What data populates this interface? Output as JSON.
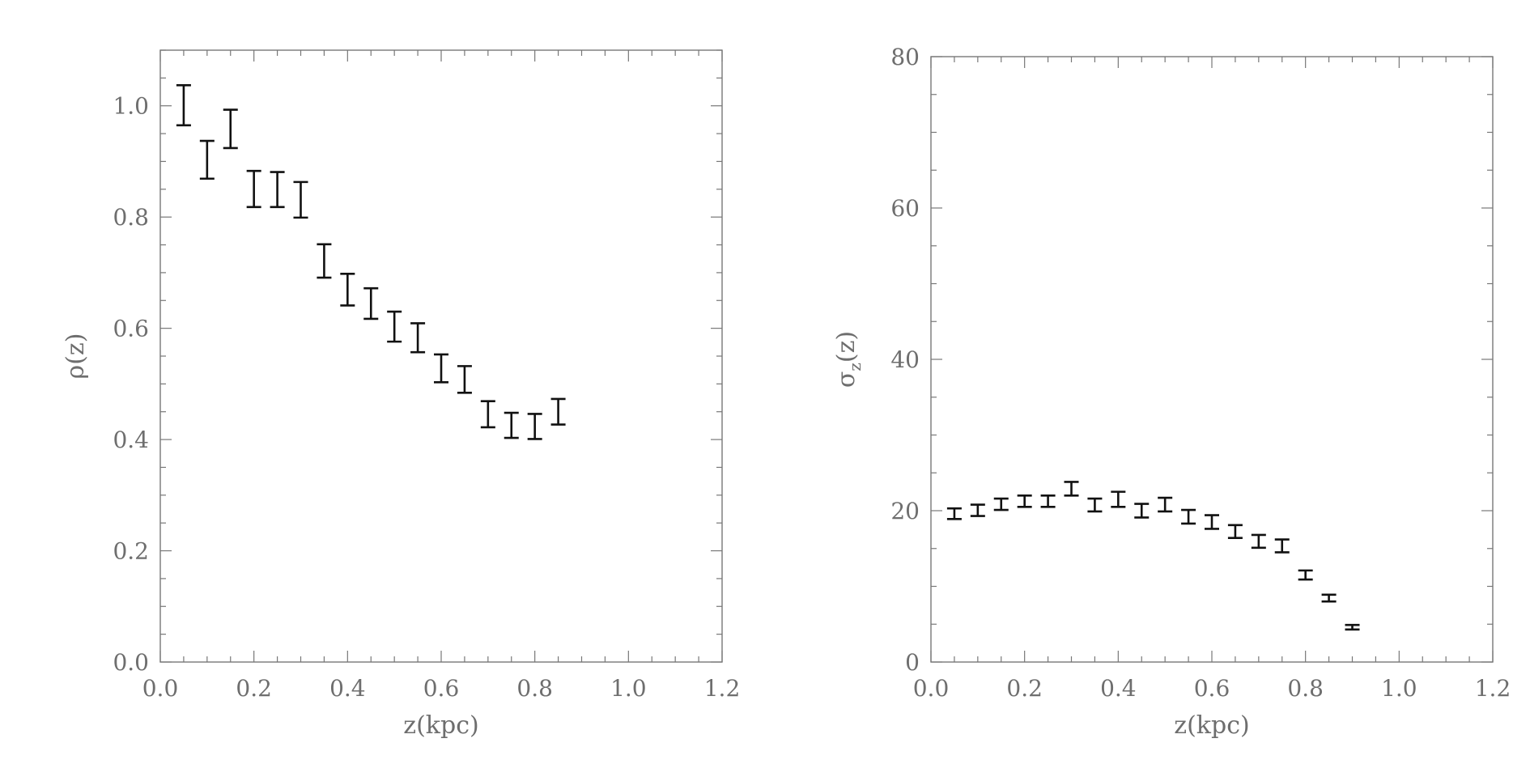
{
  "chart_data": [
    {
      "type": "scatter",
      "style": "error-bars",
      "xlabel": "z(kpc)",
      "ylabel": "ρ(z)",
      "xlim": [
        0.0,
        1.2
      ],
      "ylim": [
        0.0,
        1.1
      ],
      "x_ticks": [
        "0.0",
        "0.2",
        "0.4",
        "0.6",
        "0.8",
        "1.0",
        "1.2"
      ],
      "y_ticks": [
        "0.0",
        "0.2",
        "0.4",
        "0.6",
        "0.8",
        "1.0"
      ],
      "x_tick_values": [
        0.0,
        0.2,
        0.4,
        0.6,
        0.8,
        1.0,
        1.2
      ],
      "y_tick_values": [
        0.0,
        0.2,
        0.4,
        0.6,
        0.8,
        1.0
      ],
      "x_minor_step": 0.05,
      "y_minor_step": 0.05,
      "grid": false,
      "points": [
        {
          "x": 0.05,
          "low": 0.965,
          "high": 1.037
        },
        {
          "x": 0.1,
          "low": 0.869,
          "high": 0.937
        },
        {
          "x": 0.15,
          "low": 0.924,
          "high": 0.993
        },
        {
          "x": 0.2,
          "low": 0.818,
          "high": 0.883
        },
        {
          "x": 0.25,
          "low": 0.818,
          "high": 0.881
        },
        {
          "x": 0.3,
          "low": 0.799,
          "high": 0.863
        },
        {
          "x": 0.35,
          "low": 0.691,
          "high": 0.751
        },
        {
          "x": 0.4,
          "low": 0.641,
          "high": 0.698
        },
        {
          "x": 0.45,
          "low": 0.617,
          "high": 0.672
        },
        {
          "x": 0.5,
          "low": 0.576,
          "high": 0.63
        },
        {
          "x": 0.55,
          "low": 0.557,
          "high": 0.609
        },
        {
          "x": 0.6,
          "low": 0.503,
          "high": 0.553
        },
        {
          "x": 0.65,
          "low": 0.484,
          "high": 0.532
        },
        {
          "x": 0.7,
          "low": 0.422,
          "high": 0.469
        },
        {
          "x": 0.75,
          "low": 0.403,
          "high": 0.448
        },
        {
          "x": 0.8,
          "low": 0.401,
          "high": 0.446
        },
        {
          "x": 0.85,
          "low": 0.427,
          "high": 0.473
        }
      ]
    },
    {
      "type": "scatter",
      "style": "error-bars",
      "xlabel": "z(kpc)",
      "ylabel": "σ",
      "ylabel_sub": "z",
      "ylabel_suffix": "(z)",
      "xlim": [
        0.0,
        1.2
      ],
      "ylim": [
        0,
        80
      ],
      "x_ticks": [
        "0.0",
        "0.2",
        "0.4",
        "0.6",
        "0.8",
        "1.0",
        "1.2"
      ],
      "y_ticks": [
        "0",
        "20",
        "40",
        "60",
        "80"
      ],
      "x_tick_values": [
        0.0,
        0.2,
        0.4,
        0.6,
        0.8,
        1.0,
        1.2
      ],
      "y_tick_values": [
        0,
        20,
        40,
        60,
        80
      ],
      "x_minor_step": 0.05,
      "y_minor_step": 5,
      "grid": false,
      "points": [
        {
          "x": 0.05,
          "low": 18.9,
          "high": 20.3
        },
        {
          "x": 0.1,
          "low": 19.3,
          "high": 20.8
        },
        {
          "x": 0.15,
          "low": 20.1,
          "high": 21.6
        },
        {
          "x": 0.2,
          "low": 20.5,
          "high": 22.0
        },
        {
          "x": 0.25,
          "low": 20.5,
          "high": 22.0
        },
        {
          "x": 0.3,
          "low": 22.0,
          "high": 23.8
        },
        {
          "x": 0.35,
          "low": 19.9,
          "high": 21.6
        },
        {
          "x": 0.4,
          "low": 20.5,
          "high": 22.5
        },
        {
          "x": 0.45,
          "low": 19.1,
          "high": 20.9
        },
        {
          "x": 0.5,
          "low": 19.9,
          "high": 21.7
        },
        {
          "x": 0.55,
          "low": 18.3,
          "high": 20.1
        },
        {
          "x": 0.6,
          "low": 17.6,
          "high": 19.4
        },
        {
          "x": 0.65,
          "low": 16.4,
          "high": 18.1
        },
        {
          "x": 0.7,
          "low": 15.1,
          "high": 16.8
        },
        {
          "x": 0.75,
          "low": 14.5,
          "high": 16.2
        },
        {
          "x": 0.8,
          "low": 10.9,
          "high": 12.1
        },
        {
          "x": 0.85,
          "low": 8.0,
          "high": 8.9
        },
        {
          "x": 0.9,
          "low": 4.3,
          "high": 4.9
        }
      ]
    }
  ]
}
